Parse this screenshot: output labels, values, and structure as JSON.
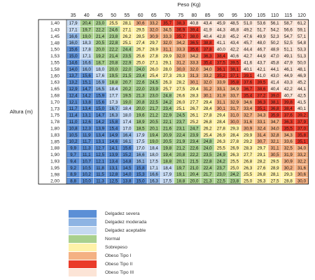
{
  "chart_data": {
    "type": "heatmap",
    "xlabel": "Peso (Kg)",
    "ylabel": "Altura (m)",
    "x": [
      35,
      40,
      45,
      50,
      55,
      60,
      65,
      70,
      75,
      80,
      85,
      90,
      95,
      100,
      105,
      110,
      115,
      120
    ],
    "y": [
      "1,40",
      "1,43",
      "1,45",
      "1,48",
      "1,50",
      "1,53",
      "1,55",
      "1,58",
      "1,60",
      "1,63",
      "1,65",
      "1,68",
      "1,70",
      "1,73",
      "1,75",
      "1,78",
      "1,80",
      "1,83",
      "1,85",
      "1,88",
      "1,90",
      "1,93",
      "1,95",
      "1,98",
      "2,00"
    ],
    "values": [
      [
        17.9,
        20.4,
        23.0,
        25.5,
        28.1,
        30.6,
        33.2,
        35.7,
        38.3,
        40.8,
        43.4,
        45.9,
        48.5,
        51.0,
        53.6,
        56.1,
        58.7,
        61.2
      ],
      [
        17.1,
        19.7,
        22.2,
        24.6,
        27.1,
        29.5,
        32.0,
        34.5,
        36.9,
        39.4,
        41.9,
        44.3,
        46.8,
        49.2,
        51.7,
        54.2,
        56.6,
        59.1
      ],
      [
        16.6,
        19.0,
        21.4,
        23.8,
        26.2,
        28.5,
        30.9,
        33.3,
        35.7,
        38.0,
        40.4,
        42.8,
        45.2,
        47.6,
        49.9,
        52.3,
        54.7,
        57.1
      ],
      [
        16.0,
        18.3,
        20.5,
        22.8,
        25.1,
        27.4,
        29.7,
        32.0,
        34.2,
        36.5,
        38.8,
        41.1,
        43.4,
        45.7,
        48.0,
        50.2,
        52.5,
        54.8
      ],
      [
        15.6,
        17.8,
        20.0,
        22.2,
        24.4,
        26.7,
        28.9,
        31.1,
        33.3,
        35.6,
        37.8,
        40.0,
        42.2,
        44.4,
        46.7,
        48.9,
        51.1,
        53.3
      ],
      [
        15.0,
        17.1,
        19.2,
        21.4,
        23.5,
        25.6,
        27.8,
        29.9,
        32.0,
        34.2,
        36.3,
        38.4,
        40.6,
        42.7,
        44.9,
        47.0,
        49.1,
        51.3
      ],
      [
        14.6,
        16.6,
        18.7,
        20.8,
        22.9,
        25.0,
        27.1,
        29.1,
        31.2,
        33.3,
        35.4,
        37.5,
        39.5,
        41.6,
        43.7,
        45.8,
        47.9,
        50.0
      ],
      [
        14.0,
        16.0,
        18.0,
        20.0,
        22.0,
        24.0,
        26.0,
        28.0,
        30.0,
        32.0,
        34.0,
        36.1,
        38.1,
        40.1,
        42.1,
        44.1,
        46.1,
        48.1
      ],
      [
        13.7,
        15.6,
        17.6,
        19.5,
        21.5,
        23.4,
        25.4,
        27.3,
        29.3,
        31.3,
        33.2,
        35.2,
        37.1,
        39.1,
        41.0,
        43.0,
        44.9,
        46.9
      ],
      [
        13.2,
        15.1,
        16.9,
        18.8,
        20.7,
        22.6,
        24.5,
        26.3,
        28.2,
        30.1,
        32.0,
        33.9,
        35.8,
        37.6,
        39.5,
        41.4,
        43.3,
        45.2
      ],
      [
        12.9,
        14.7,
        16.5,
        18.4,
        20.2,
        22.0,
        23.9,
        25.7,
        27.5,
        29.4,
        31.2,
        33.1,
        34.9,
        36.7,
        38.6,
        40.4,
        42.2,
        44.1
      ],
      [
        12.4,
        14.2,
        15.9,
        17.7,
        19.5,
        21.3,
        23.0,
        24.8,
        26.6,
        28.3,
        30.1,
        31.9,
        33.7,
        35.4,
        37.2,
        39.0,
        40.7,
        42.5
      ],
      [
        12.1,
        13.8,
        15.6,
        17.3,
        19.0,
        20.8,
        22.5,
        24.2,
        26.0,
        27.7,
        29.4,
        31.1,
        32.9,
        34.6,
        36.3,
        38.1,
        39.8,
        41.5
      ],
      [
        11.7,
        13.4,
        15.0,
        16.7,
        18.4,
        20.0,
        21.7,
        23.4,
        25.1,
        26.7,
        28.4,
        30.1,
        31.7,
        33.4,
        35.1,
        36.8,
        38.4,
        40.1
      ],
      [
        11.4,
        13.1,
        14.7,
        16.3,
        18.0,
        19.6,
        21.2,
        22.9,
        24.5,
        26.1,
        27.8,
        29.4,
        31.0,
        32.7,
        34.3,
        35.9,
        37.6,
        39.2
      ],
      [
        11.0,
        12.6,
        14.2,
        15.8,
        17.4,
        18.9,
        20.5,
        22.1,
        23.7,
        25.2,
        26.8,
        28.4,
        30.0,
        31.6,
        33.1,
        34.7,
        36.3,
        37.9
      ],
      [
        10.8,
        12.3,
        13.9,
        15.4,
        17.0,
        18.5,
        20.1,
        21.6,
        23.1,
        24.7,
        26.2,
        27.8,
        29.3,
        30.9,
        32.4,
        34.0,
        35.5,
        37.0
      ],
      [
        10.5,
        11.9,
        13.4,
        14.9,
        16.4,
        17.9,
        19.4,
        20.9,
        22.4,
        23.9,
        25.4,
        26.9,
        28.4,
        29.9,
        31.4,
        32.8,
        34.3,
        35.8
      ],
      [
        10.2,
        11.7,
        13.1,
        14.6,
        16.1,
        17.5,
        19.0,
        20.5,
        21.9,
        23.4,
        24.8,
        26.3,
        27.8,
        29.2,
        30.7,
        32.1,
        33.6,
        35.1
      ],
      [
        9.9,
        11.3,
        12.7,
        14.1,
        15.6,
        17.0,
        18.4,
        19.8,
        21.2,
        22.6,
        24.0,
        25.5,
        26.9,
        28.3,
        29.7,
        31.1,
        32.5,
        34.0
      ],
      [
        9.7,
        11.1,
        12.5,
        13.9,
        15.2,
        16.6,
        18.0,
        19.4,
        20.8,
        22.2,
        23.5,
        24.9,
        26.3,
        27.7,
        29.1,
        30.5,
        31.9,
        33.2
      ],
      [
        9.4,
        10.7,
        12.1,
        13.4,
        14.8,
        16.1,
        17.5,
        18.8,
        20.1,
        21.5,
        22.8,
        24.2,
        25.5,
        26.8,
        28.2,
        29.5,
        30.9,
        32.2
      ],
      [
        9.2,
        10.5,
        11.8,
        13.1,
        14.5,
        15.8,
        17.1,
        18.4,
        19.7,
        21.0,
        22.4,
        23.7,
        25.0,
        26.3,
        27.6,
        28.9,
        30.2,
        31.6
      ],
      [
        8.9,
        10.2,
        11.5,
        12.8,
        14.0,
        15.3,
        16.6,
        17.9,
        19.1,
        20.4,
        21.7,
        23.0,
        24.2,
        25.5,
        26.8,
        28.1,
        29.3,
        30.6
      ],
      [
        8.8,
        10.0,
        11.3,
        12.5,
        13.8,
        15.0,
        16.3,
        17.5,
        18.8,
        20.0,
        21.3,
        22.5,
        23.8,
        25.0,
        26.3,
        27.5,
        28.8,
        30.0
      ]
    ],
    "categories": [
      {
        "name": "Delgadez severa",
        "color": "#5b8fd6",
        "max": 16.0
      },
      {
        "name": "Delgadez moderada",
        "color": "#8eb4e3",
        "max": 17.0
      },
      {
        "name": "Delgadez aceptable",
        "color": "#c5d9f1",
        "max": 18.5
      },
      {
        "name": "Normal",
        "color": "#a9d08e",
        "max": 25.0
      },
      {
        "name": "Sobrepeso",
        "color": "#fff2a8",
        "max": 30.0
      },
      {
        "name": "Obeso Tipo I",
        "color": "#f4b183",
        "max": 35.0
      },
      {
        "name": "Obeso Tipo II",
        "color": "#ea3b2a",
        "max": 40.0
      },
      {
        "name": "Obeso Tipo III",
        "color": "#fce4d6",
        "max": 999
      }
    ]
  }
}
